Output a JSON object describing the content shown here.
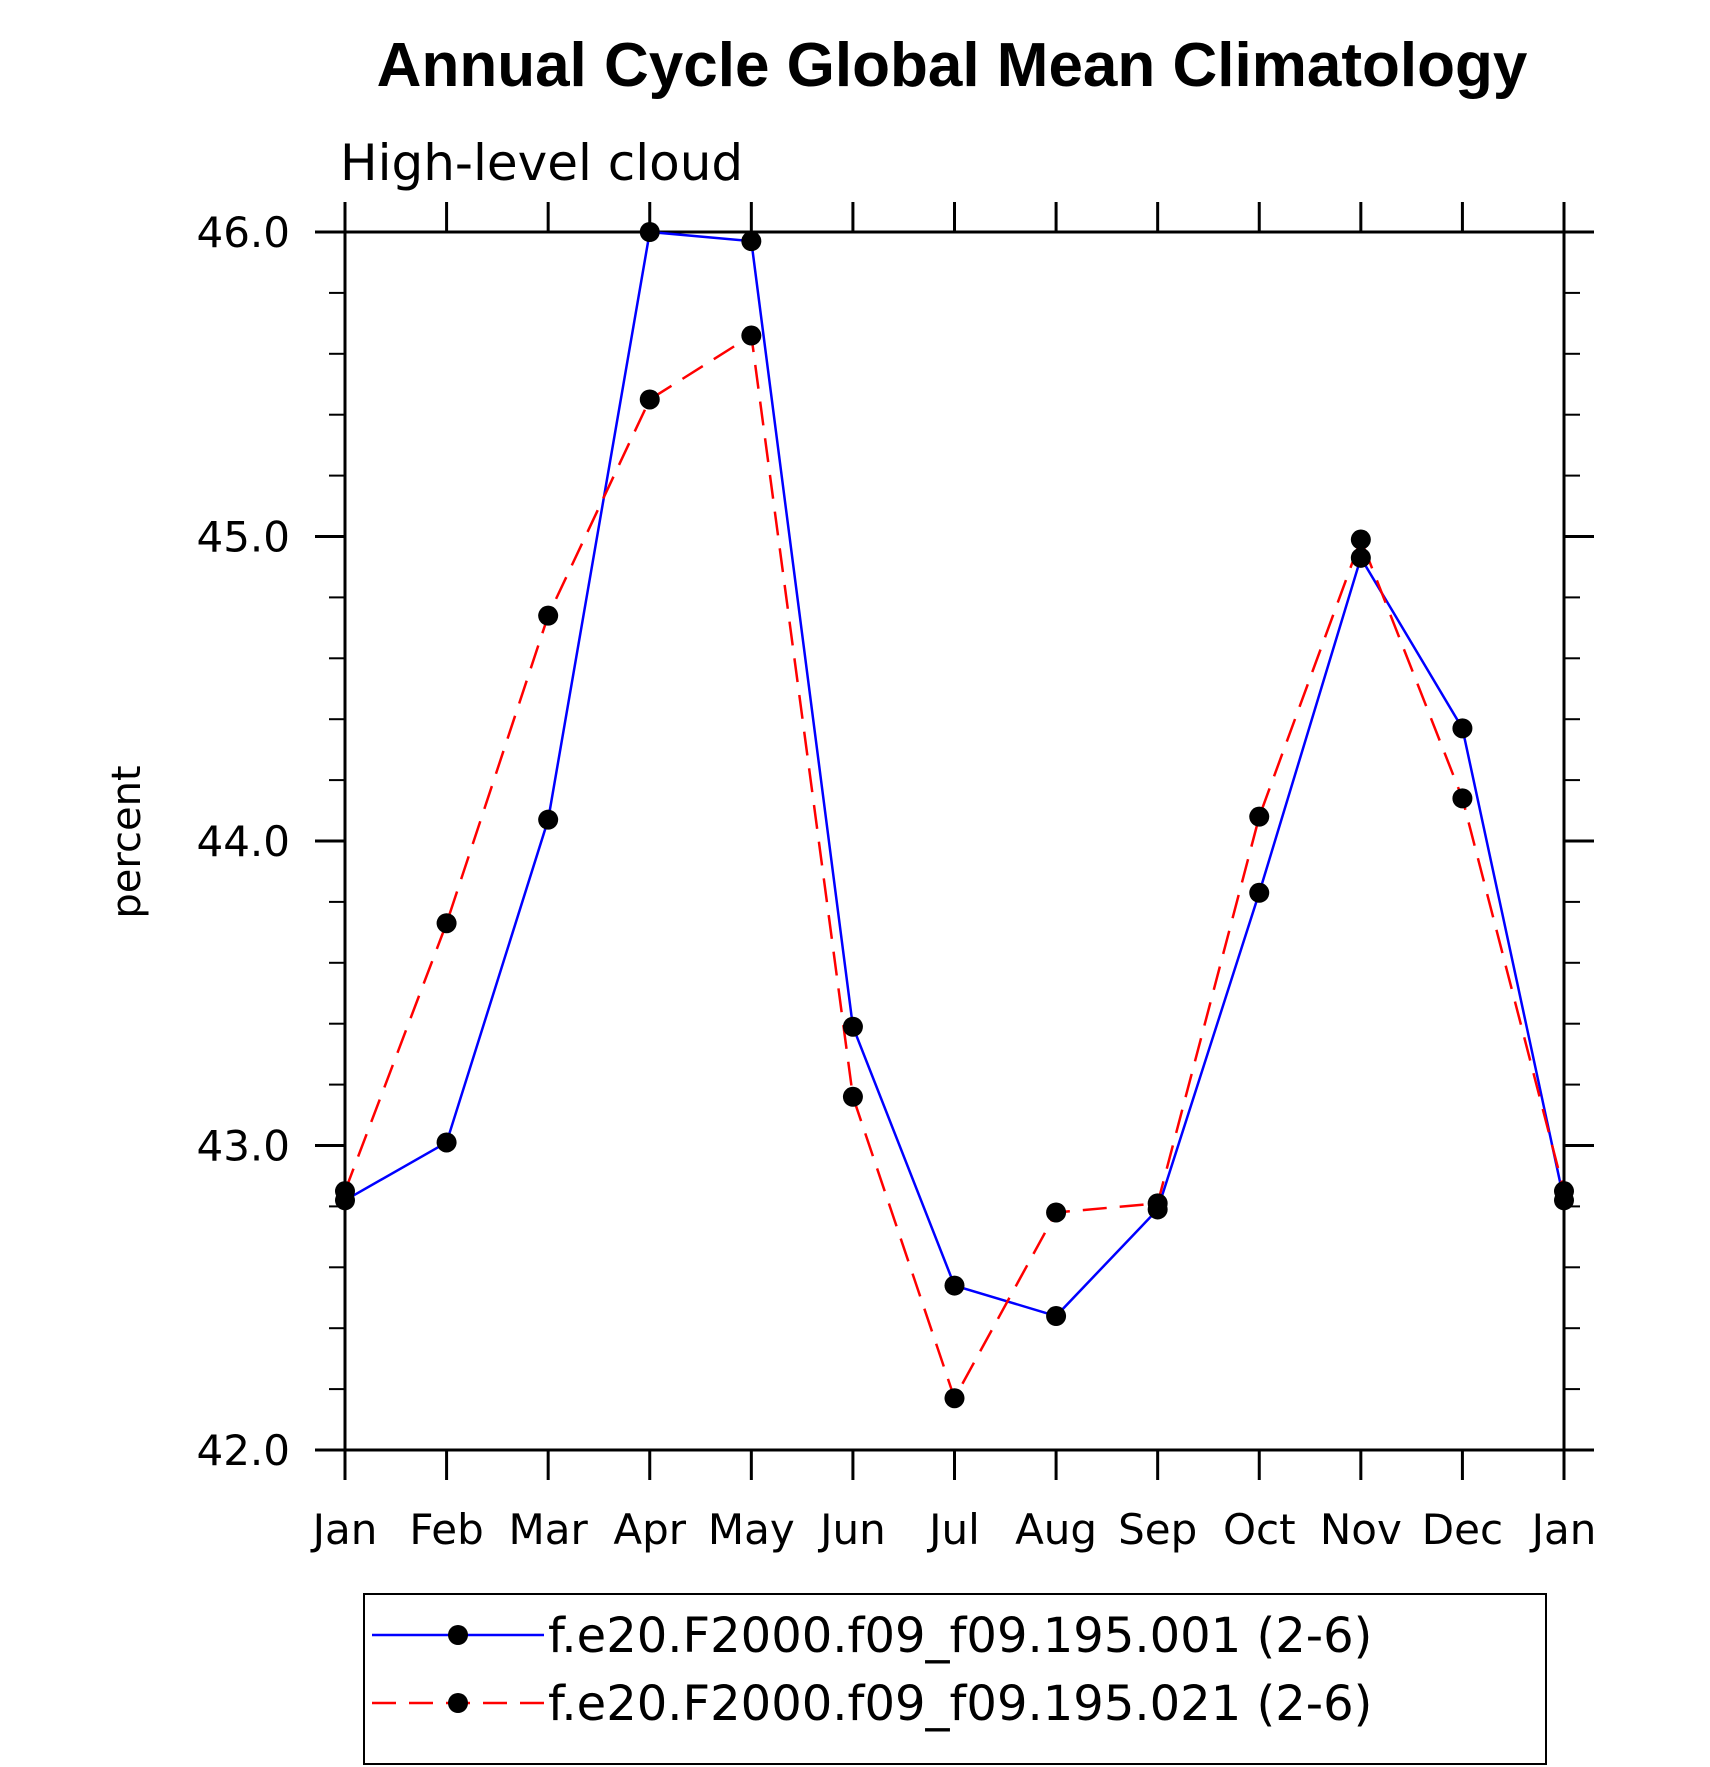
{
  "chart_data": {
    "type": "line",
    "title": "Annual Cycle Global Mean Climatology",
    "subtitle": "High-level cloud",
    "xlabel": "",
    "ylabel": "percent",
    "categories": [
      "Jan",
      "Feb",
      "Mar",
      "Apr",
      "May",
      "Jun",
      "Jul",
      "Aug",
      "Sep",
      "Oct",
      "Nov",
      "Dec",
      "Jan"
    ],
    "ylim": [
      42.0,
      46.0
    ],
    "yticks": [
      42.0,
      43.0,
      44.0,
      45.0,
      46.0
    ],
    "ytick_labels": [
      "42.0",
      "43.0",
      "44.0",
      "45.0",
      "46.0"
    ],
    "grid": false,
    "legend_position": "bottom",
    "series": [
      {
        "name": "f.e20.F2000.f09_f09.195.001 (2-6)",
        "color": "#0000ff",
        "line_style": "solid",
        "marker": "filled-circle",
        "values": [
          42.82,
          43.01,
          44.07,
          46.0,
          45.97,
          43.39,
          42.54,
          42.44,
          42.79,
          43.83,
          44.93,
          44.37,
          42.82
        ]
      },
      {
        "name": "f.e20.F2000.f09_f09.195.021 (2-6)",
        "color": "#ff0000",
        "line_style": "dashed",
        "marker": "filled-circle",
        "values": [
          42.85,
          43.73,
          44.74,
          45.45,
          45.66,
          43.16,
          42.17,
          42.78,
          42.81,
          44.08,
          44.99,
          44.14,
          42.85
        ]
      }
    ]
  }
}
